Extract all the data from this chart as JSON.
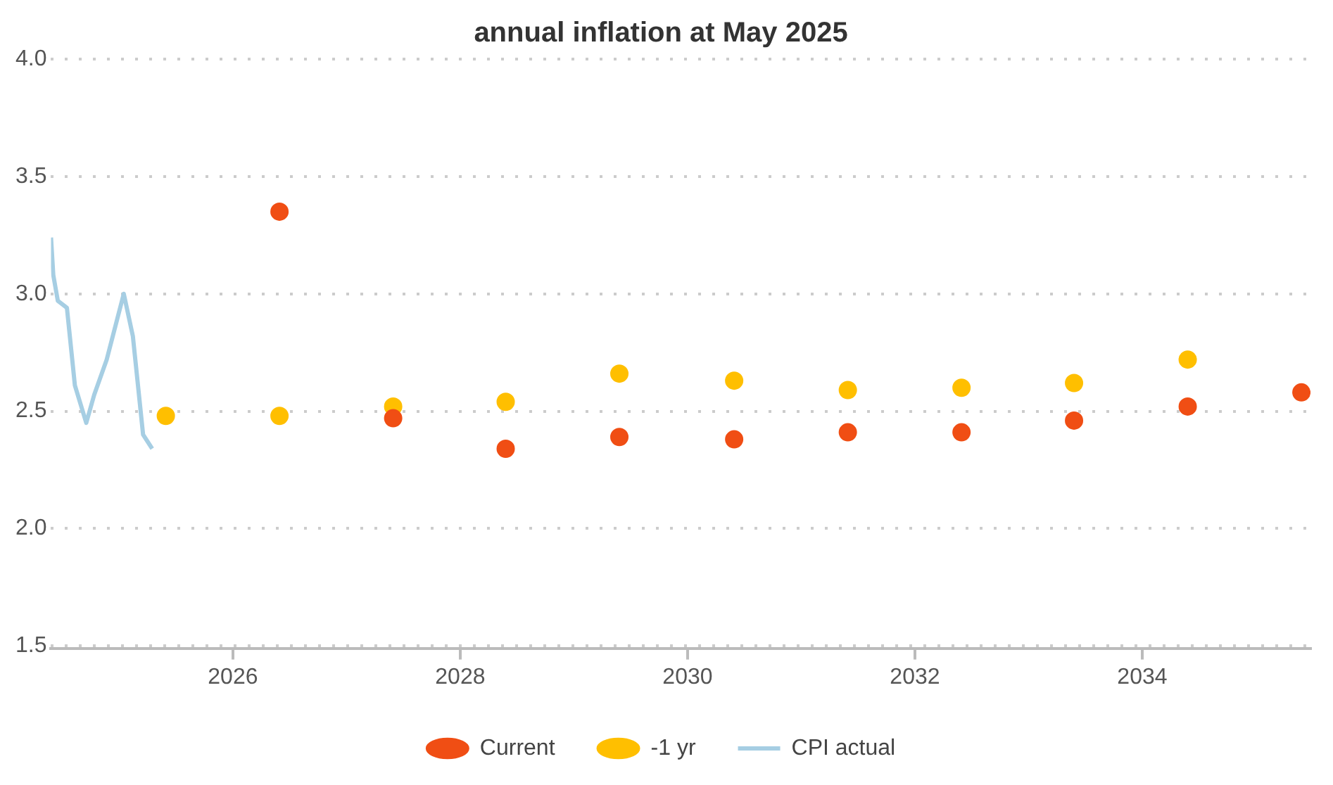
{
  "chart_data": {
    "type": "scatter",
    "title": "annual inflation at May 2025",
    "xlim": [
      2024.4,
      2035.48
    ],
    "xticks": [
      2026,
      2028,
      2030,
      2032,
      2034
    ],
    "ylim": [
      1.49,
      4.0
    ],
    "yticks": [
      {
        "value": 1.5,
        "label": "1.5"
      },
      {
        "value": 2,
        "label": "2.0"
      },
      {
        "value": 2.5,
        "label": "2.5"
      },
      {
        "value": 3,
        "label": "3.0"
      },
      {
        "value": 3.5,
        "label": "3.5"
      },
      {
        "value": 4,
        "label": "4.0"
      }
    ],
    "grid": "y",
    "legend": "bottom",
    "marker": "circle",
    "series": [
      {
        "name": "Current",
        "type": "scatter",
        "color": "#f04e14",
        "x": [
          2026.41,
          2027.41,
          2028.4,
          2029.4,
          2030.41,
          2031.41,
          2032.41,
          2033.4,
          2034.4,
          2035.4
        ],
        "values": [
          3.35,
          2.47,
          2.34,
          2.39,
          2.38,
          2.41,
          2.41,
          2.46,
          2.52,
          2.58
        ]
      },
      {
        "name": "-1 yr",
        "type": "scatter",
        "color": "#ffbf00",
        "x": [
          2025.41,
          2026.41,
          2027.41,
          2028.4,
          2029.4,
          2030.41,
          2031.41,
          2032.41,
          2033.4,
          2034.4
        ],
        "values": [
          2.48,
          2.48,
          2.52,
          2.54,
          2.66,
          2.63,
          2.59,
          2.6,
          2.62,
          2.72
        ]
      },
      {
        "name": "CPI actual",
        "type": "line",
        "color": "#a6cee3",
        "marker": "none",
        "line_style": "solid",
        "x": [
          2024.4,
          2024.42,
          2024.46,
          2024.54,
          2024.61,
          2024.71,
          2024.78,
          2024.89,
          2025.04,
          2025.12,
          2025.21,
          2025.29
        ],
        "values": [
          3.24,
          3.08,
          2.97,
          2.94,
          2.61,
          2.45,
          2.57,
          2.72,
          3.0,
          2.82,
          2.4,
          2.34
        ]
      }
    ]
  }
}
